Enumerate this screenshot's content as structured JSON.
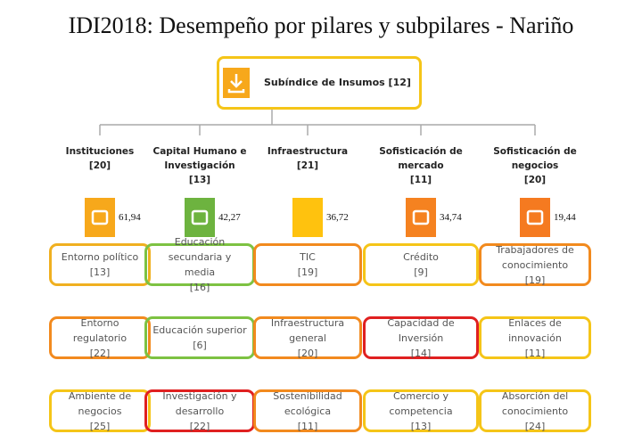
{
  "title": "IDI2018: Desempeño por pilares y subpilares - Nariño",
  "root": {
    "label": "Subíndice de Insumos [12]"
  },
  "pillars": [
    {
      "name": "Instituciones",
      "rank": "[20]",
      "score": "61,94",
      "color": "#f7a81b",
      "subpillars": [
        {
          "name": "Entorno político",
          "rank": "[13]",
          "border": "#f0b020"
        },
        {
          "name": "Entorno regulatorio",
          "rank": "[22]",
          "border": "#f28a1e"
        },
        {
          "name": "Ambiente de negocios",
          "rank": "[25]",
          "border": "#f5c518"
        }
      ]
    },
    {
      "name": "Capital Humano e Investigación",
      "rank": "[13]",
      "score": "42,27",
      "color": "#6db33f",
      "subpillars": [
        {
          "name": "Educación secundaria y media",
          "rank": "[16]",
          "border": "#7dc242"
        },
        {
          "name": "Educación superior",
          "rank": "[6]",
          "border": "#7dc242"
        },
        {
          "name": "Investigación y desarrollo",
          "rank": "[22]",
          "border": "#e02020"
        }
      ]
    },
    {
      "name": "Infraestructura",
      "rank": "[21]",
      "score": "36,72",
      "color": "#ffc20e",
      "subpillars": [
        {
          "name": "TIC",
          "rank": "[19]",
          "border": "#f28a1e"
        },
        {
          "name": "Infraestructura general",
          "rank": "[20]",
          "border": "#f28a1e"
        },
        {
          "name": "Sostenibilidad ecológica",
          "rank": "[11]",
          "border": "#f28a1e"
        }
      ]
    },
    {
      "name": "Sofisticación de mercado",
      "rank": "[11]",
      "score": "34,74",
      "color": "#f58220",
      "subpillars": [
        {
          "name": "Crédito",
          "rank": "[9]",
          "border": "#f5c518"
        },
        {
          "name": "Capacidad de Inversión",
          "rank": "[14]",
          "border": "#e02020"
        },
        {
          "name": "Comercio y competencia",
          "rank": "[13]",
          "border": "#f5c518"
        }
      ]
    },
    {
      "name": "Sofisticación de negocios",
      "rank": "[20]",
      "score": "19,44",
      "color": "#f57a20",
      "subpillars": [
        {
          "name": "Trabajadores de conocimiento",
          "rank": "[19]",
          "border": "#f28a1e"
        },
        {
          "name": "Enlaces de innovación",
          "rank": "[11]",
          "border": "#f5c518"
        },
        {
          "name": "Absorción del conocimiento",
          "rank": "[24]",
          "border": "#f5c518"
        }
      ]
    }
  ]
}
